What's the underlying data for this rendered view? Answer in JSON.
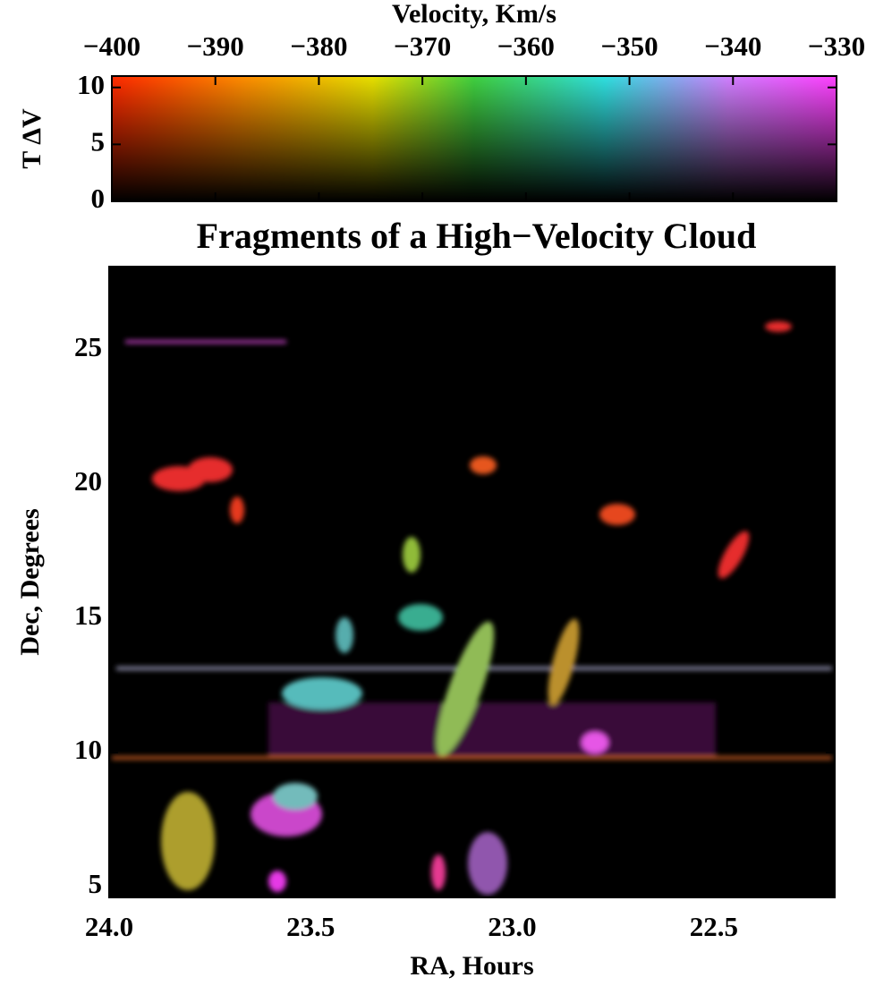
{
  "chart_data": [
    {
      "type": "colorbar",
      "xlabel": "Velocity, Km/s",
      "ylabel": "T ΔV",
      "xlim": [
        -400,
        -330
      ],
      "xticks": [
        {
          "value": -400,
          "label": "−400"
        },
        {
          "value": -390,
          "label": "−390"
        },
        {
          "value": -380,
          "label": "−380"
        },
        {
          "value": -370,
          "label": "−370"
        },
        {
          "value": -360,
          "label": "−360"
        },
        {
          "value": -350,
          "label": "−350"
        },
        {
          "value": -340,
          "label": "−340"
        },
        {
          "value": -330,
          "label": "−330"
        }
      ],
      "ylim": [
        0,
        11
      ],
      "yticks": [
        0,
        5,
        10
      ]
    },
    {
      "type": "image",
      "title": "Fragments of a High−Velocity Cloud",
      "xlabel": "RA, Hours",
      "ylabel": "Dec, Degrees",
      "xlim": [
        24.0,
        22.2
      ],
      "xticks": [
        {
          "value": 24.0,
          "label": "24.0"
        },
        23.5,
        {
          "value": 23.0,
          "label": "23.0"
        },
        22.5
      ],
      "ylim": [
        4.6,
        28.1
      ],
      "yticks": [
        5,
        10,
        15,
        20,
        25
      ]
    }
  ]
}
